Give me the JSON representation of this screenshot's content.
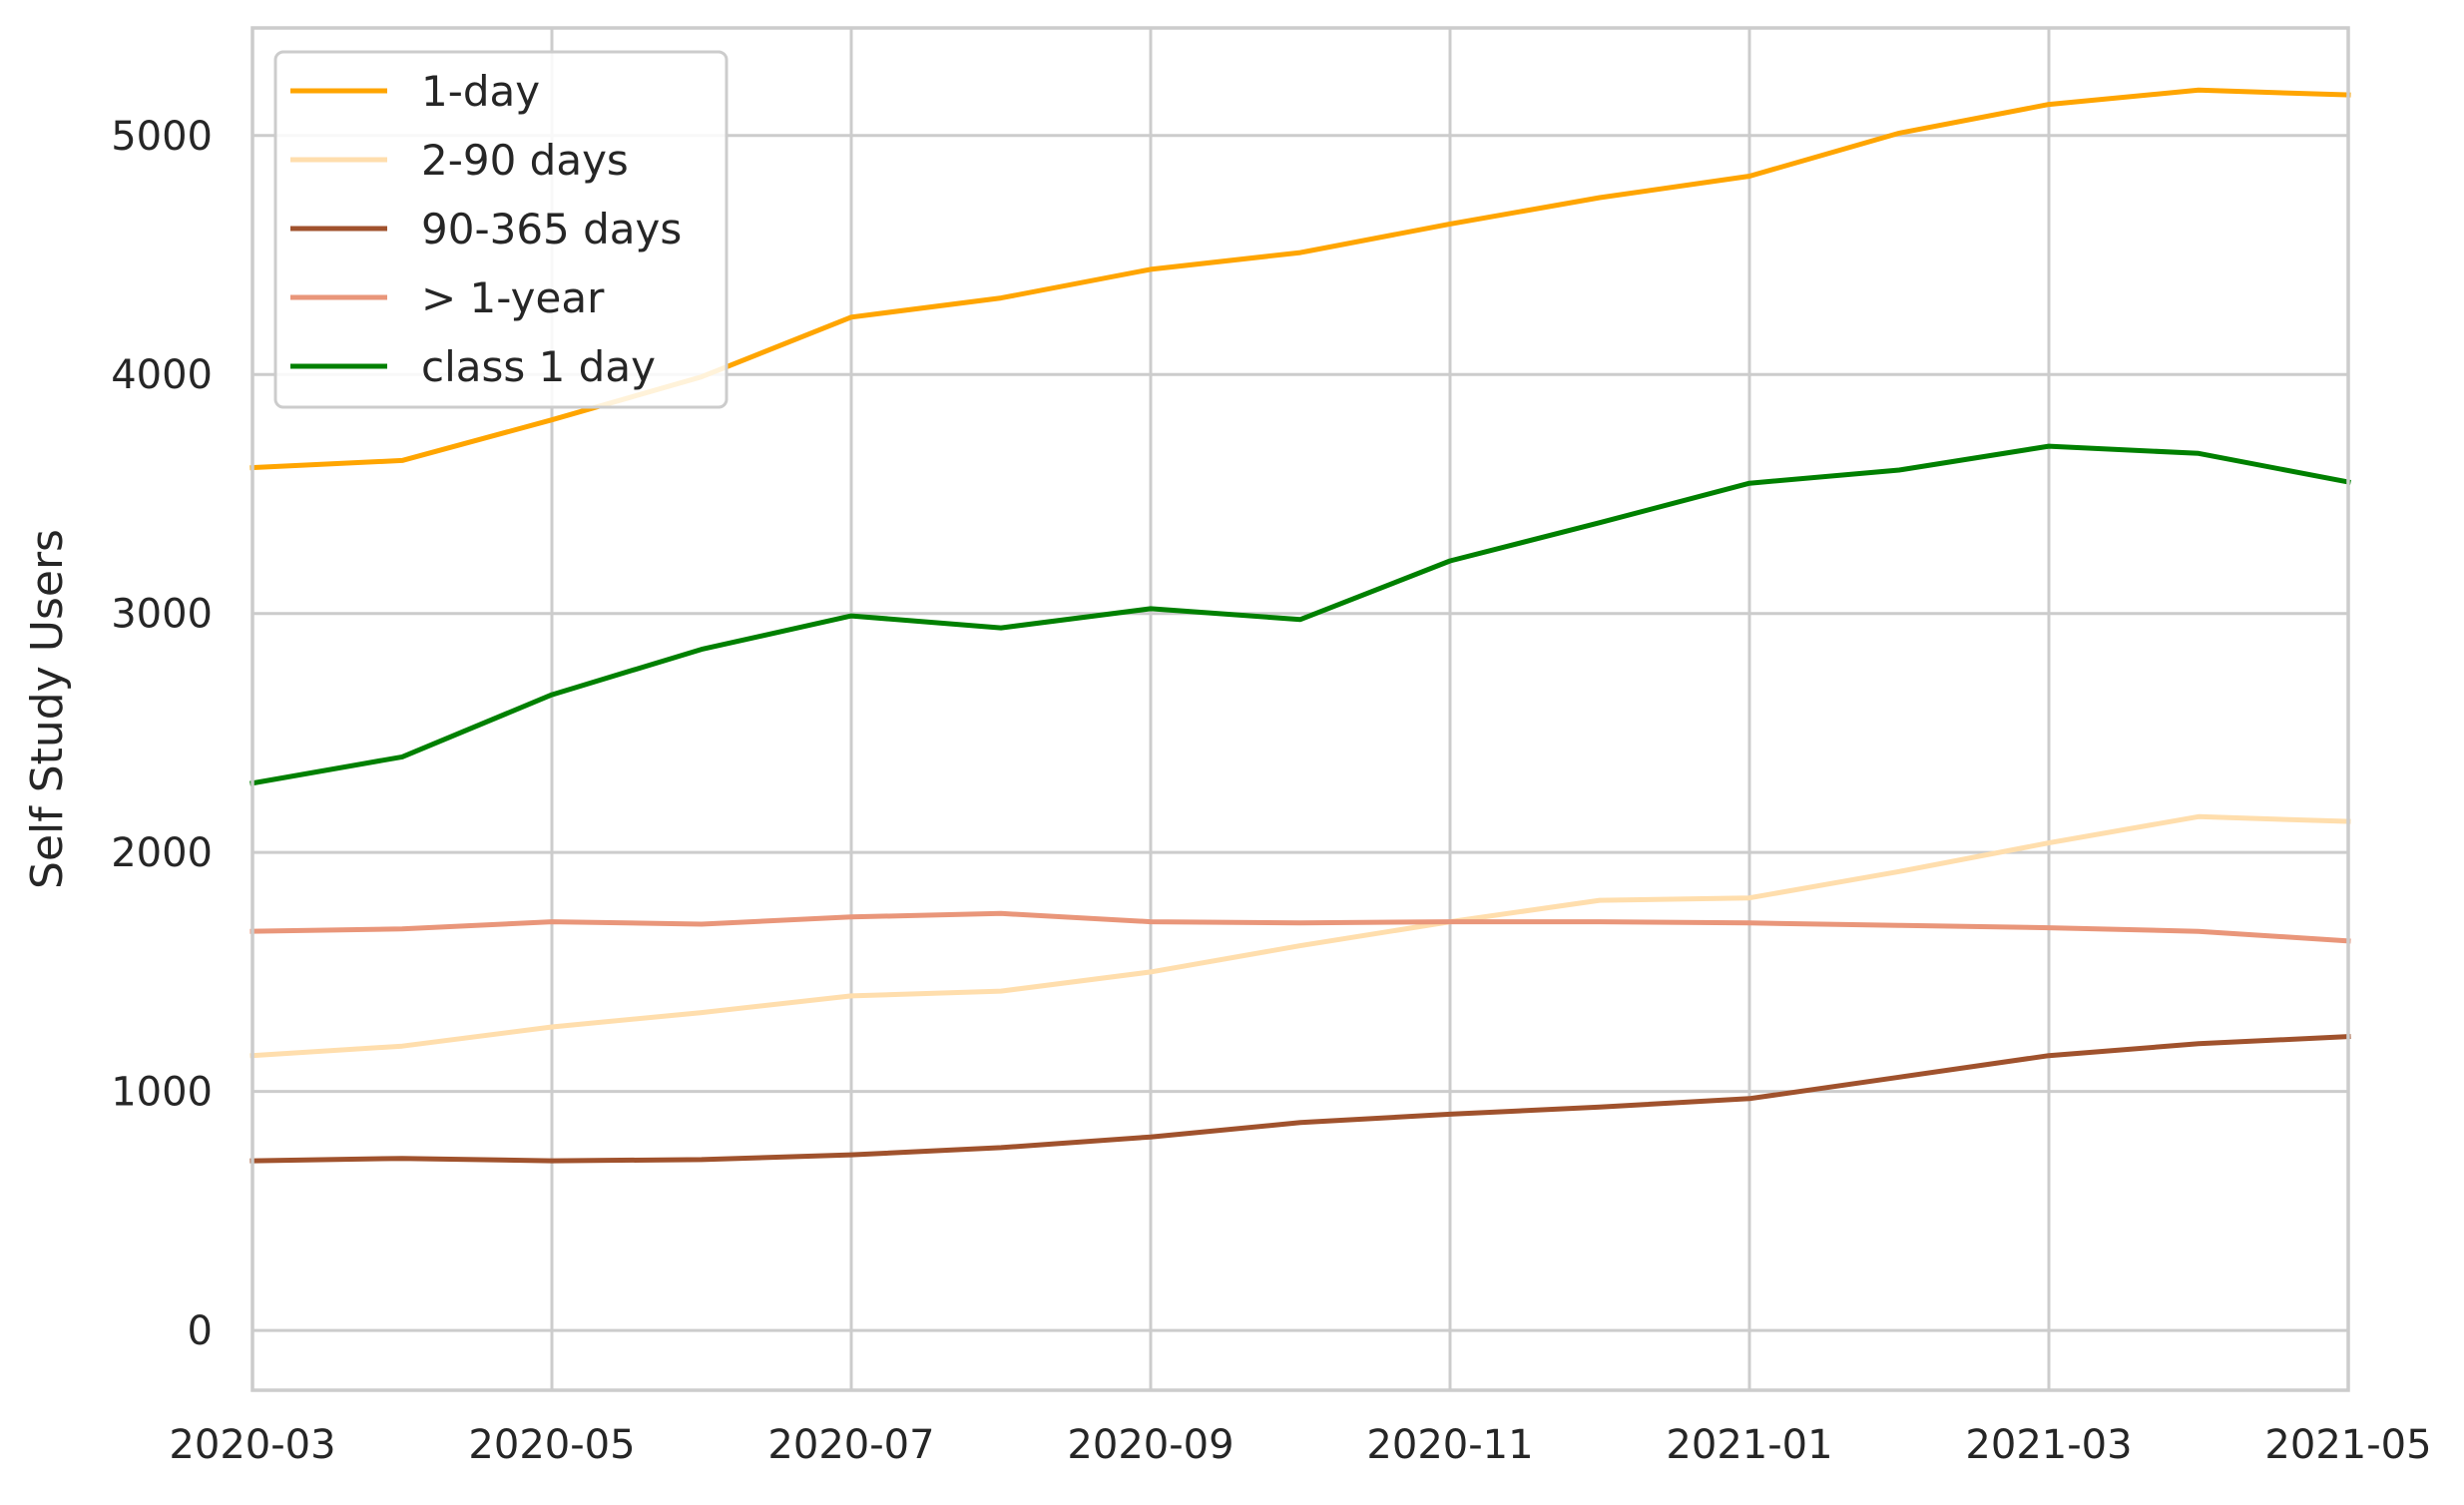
{
  "chart_data": {
    "type": "line",
    "title": "",
    "xlabel": "",
    "ylabel": "Self Study Users",
    "x": [
      "2020-03",
      "2020-04",
      "2020-05",
      "2020-06",
      "2020-07",
      "2020-08",
      "2020-09",
      "2020-10",
      "2020-11",
      "2020-12",
      "2021-01",
      "2021-02",
      "2021-03",
      "2021-04",
      "2021-05"
    ],
    "xticks": [
      "2020-03",
      "2020-05",
      "2020-07",
      "2020-09",
      "2020-11",
      "2021-01",
      "2021-03",
      "2021-05"
    ],
    "yticks": [
      0,
      1000,
      2000,
      3000,
      4000,
      5000
    ],
    "ylim": [
      -250,
      5450
    ],
    "xlim": [
      "2020-03",
      "2021-05"
    ],
    "grid": true,
    "legend_position": "top-left",
    "series": [
      {
        "name": "1-day",
        "color": "#ffa500",
        "values": [
          3610,
          3640,
          3810,
          3990,
          4240,
          4320,
          4440,
          4510,
          4630,
          4740,
          4830,
          5010,
          5130,
          5190,
          5170
        ]
      },
      {
        "name": "2-90 days",
        "color": "#ffdead",
        "values": [
          1150,
          1190,
          1270,
          1330,
          1400,
          1420,
          1500,
          1610,
          1710,
          1800,
          1810,
          1920,
          2040,
          2150,
          2130
        ]
      },
      {
        "name": "90-365 days",
        "color": "#a0522d",
        "values": [
          710,
          720,
          710,
          715,
          735,
          765,
          810,
          870,
          905,
          935,
          970,
          1060,
          1150,
          1200,
          1230
        ]
      },
      {
        "name": "> 1-year",
        "color": "#e9967a",
        "values": [
          1670,
          1680,
          1710,
          1700,
          1730,
          1745,
          1710,
          1705,
          1710,
          1710,
          1705,
          1695,
          1685,
          1670,
          1630
        ]
      },
      {
        "name": "class 1 day",
        "color": "#008000",
        "values": [
          2290,
          2400,
          2660,
          2850,
          2990,
          2940,
          3020,
          2975,
          3220,
          3380,
          3545,
          3600,
          3700,
          3670,
          3550
        ]
      }
    ]
  }
}
